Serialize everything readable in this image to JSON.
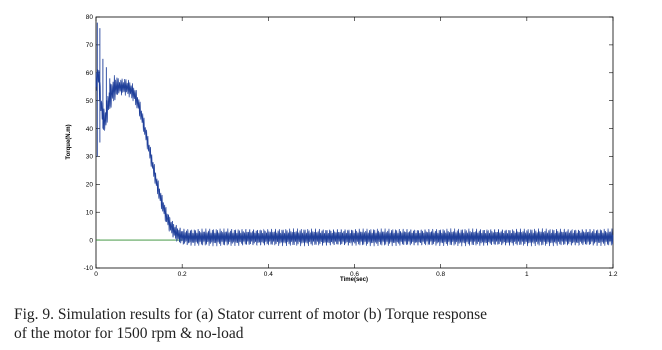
{
  "chart_data": {
    "type": "line",
    "title": "",
    "xlabel": "Time(sec)",
    "ylabel": "Torque(N.m)",
    "xlim": [
      0,
      1.2
    ],
    "ylim": [
      -10,
      80
    ],
    "x_ticks": [
      "0",
      "0.2",
      "0.4",
      "0.6",
      "0.8",
      "1",
      "1.2"
    ],
    "y_ticks": [
      "-10",
      "0",
      "10",
      "20",
      "30",
      "40",
      "50",
      "60",
      "70",
      "80"
    ],
    "grid": false,
    "legend": "none",
    "series": [
      {
        "color": "#1f3f9a",
        "description": "oscillating electromagnetic torque; ripple about the envelope",
        "ripple_amplitude": 3.2,
        "x": [
          0,
          0.005,
          0.012,
          0.02,
          0.03,
          0.04,
          0.05,
          0.06,
          0.07,
          0.08,
          0.09,
          0.1,
          0.11,
          0.12,
          0.13,
          0.14,
          0.15,
          0.16,
          0.17,
          0.18,
          0.19,
          0.2,
          0.22,
          0.25,
          0.3,
          0.4,
          0.6,
          0.8,
          1.0,
          1.2
        ],
        "y": [
          55,
          60,
          48,
          42,
          50,
          54,
          55,
          55,
          55,
          54,
          52,
          48,
          42,
          35,
          28,
          21,
          15,
          10,
          6,
          3.5,
          2,
          1.2,
          1,
          1,
          1,
          1,
          1,
          1,
          1,
          1
        ]
      },
      {
        "color": "#2e8b2e",
        "description": "load torque reference line",
        "x": [
          0,
          0.2
        ],
        "y": [
          0,
          0
        ]
      }
    ],
    "startup_spikes": [
      {
        "x": 0.003,
        "ymin": 30,
        "ymax": 78
      },
      {
        "x": 0.009,
        "ymin": 35,
        "ymax": 76
      },
      {
        "x": 0.016,
        "ymin": 40,
        "ymax": 65
      },
      {
        "x": 0.024,
        "ymin": 45,
        "ymax": 62
      },
      {
        "x": 0.032,
        "ymin": 48,
        "ymax": 58
      }
    ]
  },
  "caption": {
    "line1": "Fig. 9.   Simulation results for (a) Stator current of motor (b) Torque response",
    "line2": "of the motor for 1500 rpm & no-load"
  }
}
